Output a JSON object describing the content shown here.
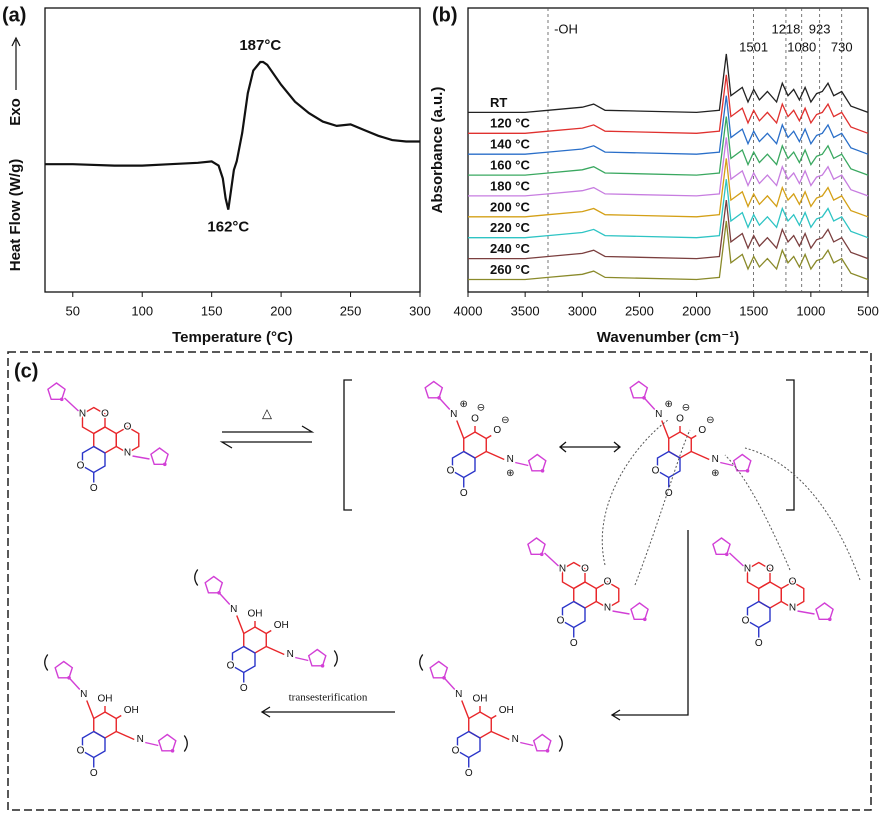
{
  "chart_data": [
    {
      "type": "line",
      "panel_label": "(a)",
      "xlabel": "Temperature (°C)",
      "ylabel": "Heat Flow (W/g)",
      "direction_label": "Exo",
      "x": [
        30,
        50,
        80,
        100,
        120,
        140,
        150,
        155,
        158,
        160,
        162,
        164,
        166,
        168,
        172,
        176,
        180,
        185,
        187,
        190,
        200,
        210,
        220,
        230,
        240,
        250,
        260,
        270,
        280,
        290,
        300
      ],
      "values": [
        4.5,
        4.5,
        4.45,
        4.45,
        4.5,
        4.55,
        4.6,
        4.45,
        4.0,
        3.3,
        2.9,
        3.6,
        4.3,
        4.6,
        5.6,
        7.0,
        7.8,
        8.1,
        8.1,
        8.0,
        7.3,
        6.7,
        6.3,
        6.0,
        5.85,
        5.9,
        5.7,
        5.5,
        5.35,
        5.3,
        5.3
      ],
      "color": "#111111",
      "annotations": [
        "187°C",
        "162°C"
      ],
      "xlim": [
        30,
        300
      ],
      "xticks": [
        50,
        100,
        150,
        200,
        250,
        300
      ],
      "ylim": [
        0,
        10
      ]
    },
    {
      "type": "line",
      "panel_label": "(b)",
      "xlabel": "Wavenumber (cm⁻¹)",
      "ylabel": "Absorbance (a.u.)",
      "label_position": "left",
      "x": [
        4000,
        3500,
        3300,
        3000,
        2900,
        2800,
        2000,
        1800,
        1740,
        1700,
        1600,
        1550,
        1500,
        1450,
        1380,
        1300,
        1250,
        1200,
        1150,
        1100,
        1050,
        1000,
        950,
        900,
        850,
        800,
        730,
        650,
        500
      ],
      "series": [
        {
          "name": "RT",
          "color": "#222222",
          "values": [
            8,
            8,
            8.1,
            8.25,
            8.4,
            8.1,
            8,
            8.1,
            10.8,
            8.8,
            9.2,
            8.5,
            9.1,
            8.6,
            9,
            8.5,
            9.4,
            8.8,
            9.1,
            8.6,
            9.2,
            8.5,
            8.9,
            9,
            9.4,
            8.8,
            9,
            8.3,
            8
          ]
        },
        {
          "name": "120 °C",
          "color": "#e0312f",
          "values": [
            7,
            7,
            7.1,
            7.25,
            7.4,
            7.1,
            7,
            7.1,
            9.8,
            7.8,
            8.2,
            7.5,
            8.1,
            7.6,
            8,
            7.5,
            8.4,
            7.8,
            8.1,
            7.6,
            8.2,
            7.5,
            7.9,
            8,
            8.4,
            7.8,
            8,
            7.3,
            7
          ]
        },
        {
          "name": "140 °C",
          "color": "#2a6fc9",
          "values": [
            6,
            6,
            6.1,
            6.25,
            6.4,
            6.1,
            6,
            6.1,
            8.8,
            6.8,
            7.2,
            6.5,
            7.1,
            6.6,
            7,
            6.5,
            7.4,
            6.8,
            7.1,
            6.6,
            7.2,
            6.5,
            6.9,
            7,
            7.4,
            6.8,
            7,
            6.3,
            6
          ]
        },
        {
          "name": "160 °C",
          "color": "#3aa860",
          "values": [
            5,
            5,
            5.1,
            5.25,
            5.4,
            5.1,
            5,
            5.1,
            7.8,
            5.8,
            6.2,
            5.5,
            6.1,
            5.6,
            6,
            5.5,
            6.4,
            5.8,
            6.1,
            5.6,
            6.2,
            5.5,
            5.9,
            6,
            6.4,
            5.8,
            6,
            5.3,
            5
          ]
        },
        {
          "name": "180 °C",
          "color": "#c77de0",
          "values": [
            4,
            4,
            4.1,
            4.25,
            4.4,
            4.1,
            4,
            4.1,
            6.8,
            4.8,
            5.2,
            4.5,
            5.1,
            4.6,
            5,
            4.5,
            5.4,
            4.8,
            5.1,
            4.6,
            5.2,
            4.5,
            4.9,
            5,
            5.4,
            4.8,
            5,
            4.3,
            4
          ]
        },
        {
          "name": "200 °C",
          "color": "#d4a017",
          "values": [
            3,
            3,
            3.1,
            3.25,
            3.4,
            3.1,
            3,
            3.1,
            5.8,
            3.8,
            4.2,
            3.5,
            4.1,
            3.6,
            4,
            3.5,
            4.4,
            3.8,
            4.1,
            3.6,
            4.2,
            3.5,
            3.9,
            4,
            4.4,
            3.8,
            4,
            3.3,
            3
          ]
        },
        {
          "name": "220 °C",
          "color": "#2ec4c4",
          "values": [
            2,
            2,
            2.1,
            2.25,
            2.4,
            2.1,
            2,
            2.1,
            4.8,
            2.8,
            3.2,
            2.5,
            3.1,
            2.6,
            3,
            2.5,
            3.4,
            2.8,
            3.1,
            2.6,
            3.2,
            2.5,
            2.9,
            3,
            3.4,
            2.8,
            3,
            2.3,
            2
          ]
        },
        {
          "name": "240 °C",
          "color": "#7b3f3f",
          "values": [
            1,
            1,
            1.1,
            1.25,
            1.4,
            1.1,
            1,
            1.1,
            3.8,
            1.8,
            2.2,
            1.5,
            2.1,
            1.6,
            2,
            1.5,
            2.4,
            1.8,
            2.1,
            1.6,
            2.2,
            1.5,
            1.9,
            2,
            2.4,
            1.8,
            2,
            1.3,
            1
          ]
        },
        {
          "name": "260 °C",
          "color": "#8a8a2a",
          "values": [
            0,
            0,
            0.1,
            0.25,
            0.4,
            0.1,
            0,
            0.1,
            2.8,
            0.8,
            1.2,
            0.5,
            1.1,
            0.6,
            1,
            0.5,
            1.4,
            0.8,
            1.1,
            0.6,
            1.2,
            0.5,
            0.9,
            1,
            1.4,
            0.8,
            1,
            0.3,
            0
          ]
        }
      ],
      "reference_lines": [
        3300,
        1501,
        1218,
        1080,
        923,
        730
      ],
      "annotations": [
        {
          "x": 3300,
          "text": "-OH"
        }
      ],
      "xlim": [
        4000,
        500
      ],
      "xticks": [
        4000,
        3500,
        3000,
        2500,
        2000,
        1500,
        1000,
        500
      ],
      "ylim": [
        -0.6,
        13
      ]
    }
  ],
  "scheme": {
    "panel_label": "(c)",
    "heat_symbol": "△",
    "arrow_label": "transesterification",
    "atom_labels": {
      "O": "O",
      "N": "N",
      "OH": "OH",
      "minus": "⊖",
      "plus": "⊕"
    }
  }
}
